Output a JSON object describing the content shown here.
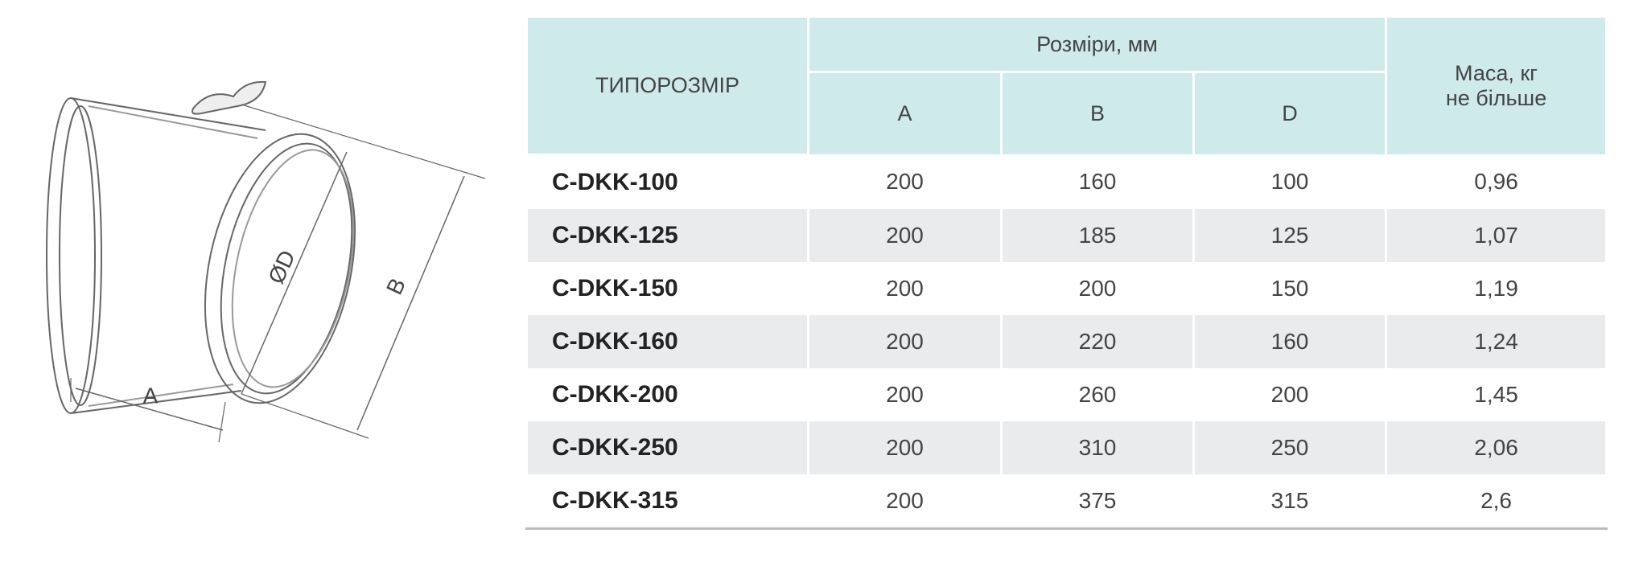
{
  "drawing": {
    "labels": {
      "a": "A",
      "b": "B",
      "d": "ØD"
    }
  },
  "table": {
    "header": {
      "model": "ТИПОРОЗМІР",
      "sizes": "Розміри, мм",
      "columns": [
        "A",
        "B",
        "D"
      ],
      "mass": [
        "Маса, кг",
        "не більше"
      ]
    },
    "rows": [
      [
        "C-DKK-100",
        "200",
        "160",
        "100",
        "0,96"
      ],
      [
        "C-DKK-125",
        "200",
        "185",
        "125",
        "1,07"
      ],
      [
        "C-DKK-150",
        "200",
        "200",
        "150",
        "1,19"
      ],
      [
        "C-DKK-160",
        "200",
        "220",
        "160",
        "1,24"
      ],
      [
        "C-DKK-200",
        "200",
        "260",
        "200",
        "1,45"
      ],
      [
        "C-DKK-250",
        "200",
        "310",
        "250",
        "2,06"
      ],
      [
        "C-DKK-315",
        "200",
        "375",
        "315",
        "2,6"
      ]
    ]
  }
}
